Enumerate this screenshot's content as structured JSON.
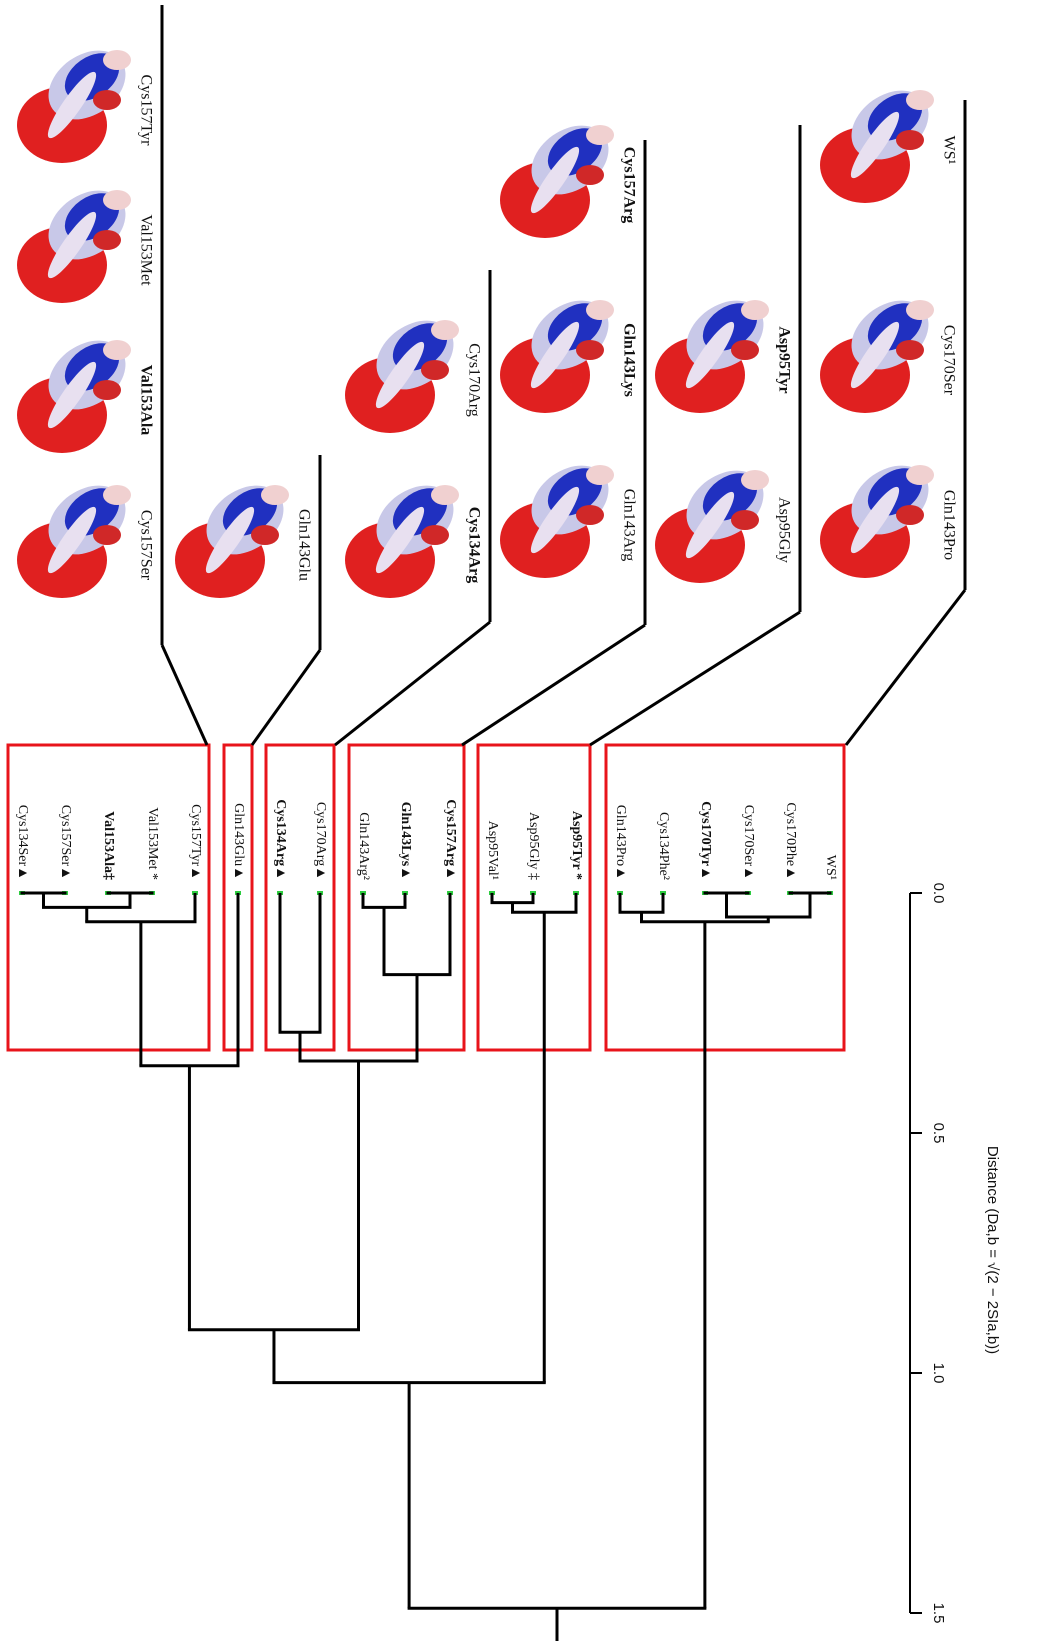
{
  "chart_data": {
    "type": "dendrogram",
    "y_label": "Distance (Da,b = √(2 − 2SIa,b))",
    "ylim": [
      0,
      1.5
    ],
    "yticks": [
      {
        "value": 0,
        "label": "0.0"
      },
      {
        "value": 0.5,
        "label": "0.5"
      },
      {
        "value": 1,
        "label": "1.0"
      },
      {
        "value": 1.5,
        "label": "1.5"
      }
    ],
    "leaves": [
      {
        "label": "Cys134Ser▲"
      },
      {
        "label": "Cys157Ser▲"
      },
      {
        "label": "Val153Ala‡",
        "bold": true
      },
      {
        "label": "Val153Met *"
      },
      {
        "label": "Cys157Tyr▲"
      },
      {
        "label": "Gln143Glu▲"
      },
      {
        "label": "Cys134Arg▲",
        "bold": true
      },
      {
        "label": "Cys170Arg▲"
      },
      {
        "label": "Gln143Arg²"
      },
      {
        "label": "Gln143Lys▲",
        "bold": true
      },
      {
        "label": "Cys157Arg▲",
        "bold": true
      },
      {
        "label": "Asp95Val¹"
      },
      {
        "label": "Asp95Gly ‡"
      },
      {
        "label": "Asp95Tyr *",
        "bold": true
      },
      {
        "label": "Gln143Pro▲"
      },
      {
        "label": "Cys134Phe²"
      },
      {
        "label": "Cys170Tyr▲",
        "bold": true
      },
      {
        "label": "Cys170Ser▲"
      },
      {
        "label": "Cys170Phe▲"
      },
      {
        "label": "WS¹"
      }
    ],
    "merges": [
      {
        "children": [
          0,
          1
        ],
        "height": 0.0
      },
      {
        "children": [
          2,
          3
        ],
        "height": 0.0
      },
      {
        "children": [
          20,
          21
        ],
        "height": 0.03
      },
      {
        "children": [
          22,
          4
        ],
        "height": 0.06
      },
      {
        "children": [
          23,
          5
        ],
        "height": 0.36
      },
      {
        "children": [
          6,
          7
        ],
        "height": 0.29
      },
      {
        "children": [
          8,
          9
        ],
        "height": 0.03
      },
      {
        "children": [
          26,
          10
        ],
        "height": 0.17
      },
      {
        "children": [
          25,
          27
        ],
        "height": 0.35
      },
      {
        "children": [
          24,
          28
        ],
        "height": 0.91
      },
      {
        "children": [
          11,
          12
        ],
        "height": 0.02
      },
      {
        "children": [
          30,
          13
        ],
        "height": 0.04
      },
      {
        "children": [
          29,
          31
        ],
        "height": 1.02
      },
      {
        "children": [
          14,
          15
        ],
        "height": 0.04
      },
      {
        "children": [
          16,
          17
        ],
        "height": 0.0
      },
      {
        "children": [
          18,
          19
        ],
        "height": 0.0
      },
      {
        "children": [
          34,
          35
        ],
        "height": 0.05
      },
      {
        "children": [
          33,
          36
        ],
        "height": 0.06
      },
      {
        "children": [
          32,
          37
        ],
        "height": 1.49
      }
    ],
    "clusters": [
      [
        0,
        1,
        2,
        3,
        4
      ],
      [
        5
      ],
      [
        6,
        7
      ],
      [
        8,
        9,
        10
      ],
      [
        11,
        12,
        13
      ],
      [
        14,
        15,
        16,
        17,
        18,
        19
      ]
    ],
    "cluster_color": "#e8141b",
    "panels": [
      {
        "labels": [
          {
            "text": "Cys157Ser"
          },
          {
            "text": "Val153Ala",
            "bold": true
          },
          {
            "text": "Val153Met"
          },
          {
            "text": "Cys157Tyr"
          }
        ]
      },
      {
        "labels": [
          {
            "text": "Gln143Glu"
          }
        ]
      },
      {
        "labels": [
          {
            "text": "Cys134Arg",
            "bold": true
          },
          {
            "text": "Cys170Arg"
          }
        ]
      },
      {
        "labels": [
          {
            "text": "Gln143Arg"
          },
          {
            "text": "Gln143Lys",
            "bold": true
          },
          {
            "text": "Cys157Arg",
            "bold": true
          }
        ]
      },
      {
        "labels": [
          {
            "text": "Asp95Gly"
          },
          {
            "text": "Asp95Tyr",
            "bold": true
          }
        ]
      },
      {
        "labels": [
          {
            "text": "Gln143Pro"
          },
          {
            "text": "Cys170Ser"
          },
          {
            "text": "WS¹"
          }
        ]
      }
    ]
  }
}
